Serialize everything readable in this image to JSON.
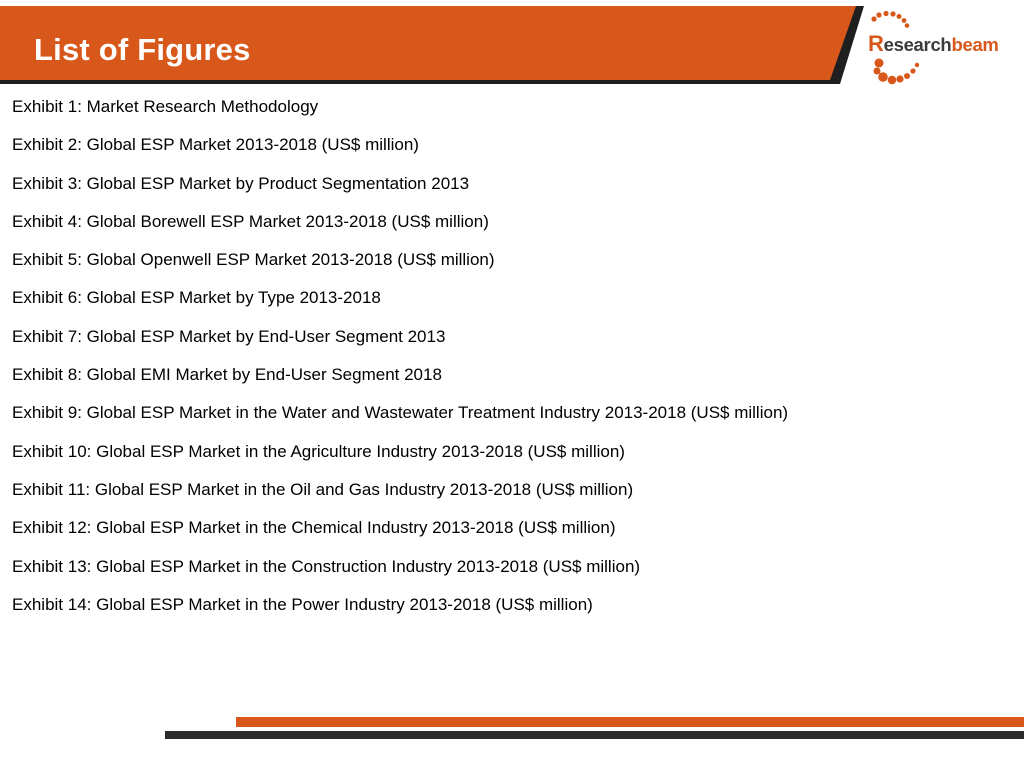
{
  "header": {
    "title": "List of Figures"
  },
  "brand": {
    "logo_r": "R",
    "logo_search": "esearch",
    "logo_beam": "beam"
  },
  "colors": {
    "accent_orange": "#d8581b",
    "dark_band": "#1f1f1f",
    "text": "#000000"
  },
  "figures": [
    "Exhibit 1: Market Research Methodology",
    "Exhibit 2: Global ESP Market 2013-2018 (US$ million)",
    "Exhibit 3: Global ESP Market by Product Segmentation 2013",
    "Exhibit 4: Global Borewell ESP Market 2013-2018 (US$ million)",
    "Exhibit 5: Global Openwell ESP Market 2013-2018 (US$ million)",
    "Exhibit 6: Global ESP Market by Type 2013-2018",
    "Exhibit 7: Global ESP Market by End-User Segment 2013",
    "Exhibit 8: Global EMI Market by End-User Segment 2018",
    "Exhibit 9: Global ESP Market in the Water and Wastewater Treatment Industry 2013-2018 (US$ million)",
    "Exhibit 10: Global ESP Market in the Agriculture Industry 2013-2018 (US$ million)",
    "Exhibit 11: Global ESP Market in the Oil and Gas Industry 2013-2018 (US$ million)",
    "Exhibit 12: Global ESP Market in the Chemical Industry 2013-2018 (US$ million)",
    "Exhibit 13: Global ESP Market in the Construction Industry 2013-2018 (US$ million)",
    "Exhibit 14: Global ESP Market in the Power Industry 2013-2018 (US$ million)"
  ]
}
